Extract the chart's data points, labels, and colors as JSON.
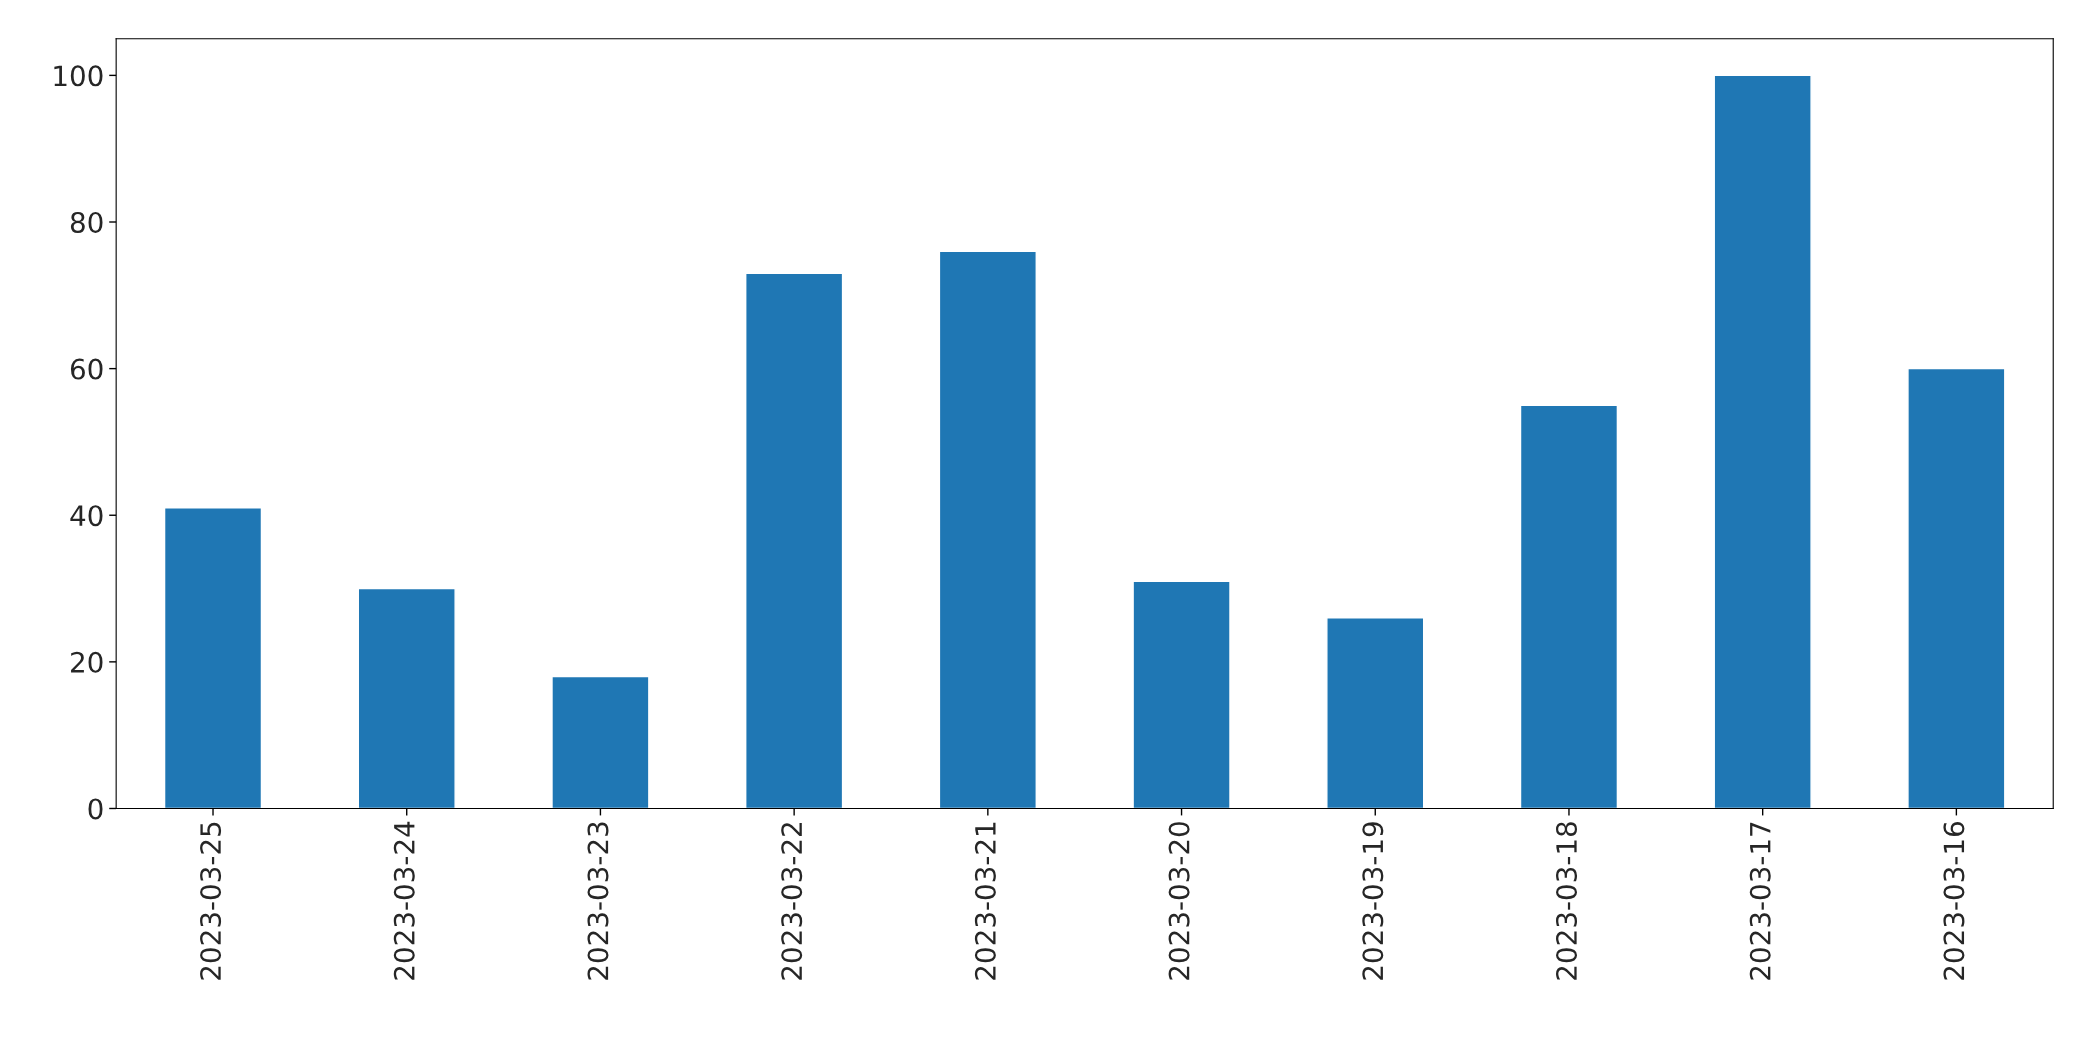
{
  "chart_data": {
    "type": "bar",
    "categories": [
      "2023-03-25",
      "2023-03-24",
      "2023-03-23",
      "2023-03-22",
      "2023-03-21",
      "2023-03-20",
      "2023-03-19",
      "2023-03-18",
      "2023-03-17",
      "2023-03-16"
    ],
    "values": [
      41,
      30,
      18,
      73,
      76,
      31,
      26,
      55,
      100,
      60
    ],
    "color": "#1f77b4",
    "ylim": [
      0,
      105
    ],
    "yticks": [
      0,
      20,
      40,
      60,
      80,
      100
    ],
    "grid": false,
    "legend": false
  }
}
